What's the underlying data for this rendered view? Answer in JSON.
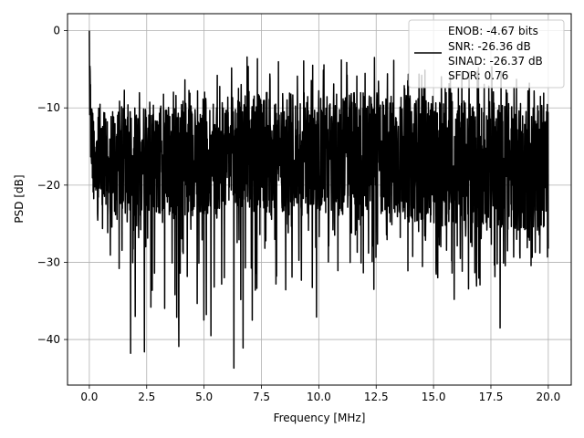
{
  "chart_data": {
    "type": "line",
    "xlabel": "Frequency [MHz]",
    "ylabel": "PSD [dB]",
    "xlim": [
      -0.95,
      21.0
    ],
    "ylim": [
      -45.9,
      2.2
    ],
    "xticks": [
      0.0,
      2.5,
      5.0,
      7.5,
      10.0,
      12.5,
      15.0,
      17.5,
      20.0
    ],
    "xtick_labels": [
      "0.0",
      "2.5",
      "5.0",
      "7.5",
      "10.0",
      "12.5",
      "15.0",
      "17.5",
      "20.0"
    ],
    "yticks": [
      0,
      -10,
      -20,
      -30,
      -40
    ],
    "ytick_labels": [
      "0",
      "−10",
      "−20",
      "−30",
      "−40"
    ],
    "grid": true,
    "legend_placement": "top-right",
    "legend_lines": [
      "ENOB: -4.67 bits",
      "SNR: -26.36 dB",
      "SINAD: -26.37 dB",
      "SFDR: 0.76"
    ],
    "series_color": "#000000",
    "series": [
      {
        "x_start": 0.0,
        "x_end": 20.0,
        "envelope": {
          "x": [
            0.0,
            0.05,
            0.1,
            0.3,
            1.0,
            2.5,
            5.0,
            7.5,
            10.0,
            12.5,
            15.0,
            17.5,
            20.0
          ],
          "upper_peak": [
            0.0,
            -1.5,
            -6.0,
            -8.0,
            -8.0,
            -7.0,
            -6.0,
            -2.5,
            -4.0,
            -3.0,
            -5.0,
            -4.5,
            -7.5
          ],
          "upper_body": [
            -3.0,
            -6.0,
            -10.0,
            -12.0,
            -11.0,
            -10.0,
            -9.0,
            -8.0,
            -8.0,
            -8.0,
            -8.5,
            -9.0,
            -9.5
          ],
          "lower_body": [
            -12.0,
            -16.0,
            -20.0,
            -23.0,
            -24.0,
            -24.0,
            -24.0,
            -24.0,
            -24.0,
            -24.0,
            -25.0,
            -26.0,
            -26.0
          ],
          "lower_dip": [
            -15.0,
            -19.0,
            -24.0,
            -28.0,
            -35.0,
            -42.0,
            -44.0,
            -41.0,
            -37.0,
            -34.0,
            -35.0,
            -38.0,
            -33.0
          ]
        },
        "notable_dips": [
          {
            "x": 1.8,
            "y": -41.8
          },
          {
            "x": 2.0,
            "y": -37.0
          },
          {
            "x": 2.4,
            "y": -41.6
          },
          {
            "x": 3.9,
            "y": -40.9
          },
          {
            "x": 5.3,
            "y": -39.5
          },
          {
            "x": 6.3,
            "y": -43.7
          },
          {
            "x": 6.7,
            "y": -41.1
          },
          {
            "x": 7.1,
            "y": -37.5
          },
          {
            "x": 9.9,
            "y": -37.1
          },
          {
            "x": 12.4,
            "y": -33.5
          },
          {
            "x": 15.9,
            "y": -34.8
          },
          {
            "x": 17.9,
            "y": -38.5
          }
        ]
      }
    ]
  }
}
